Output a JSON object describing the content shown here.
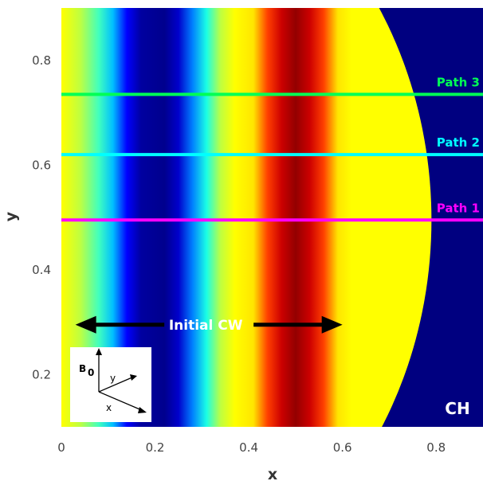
{
  "chart_data": {
    "type": "heatmap",
    "xlabel": "x",
    "ylabel": "y",
    "xlim": [
      0,
      0.9
    ],
    "ylim": [
      0.1,
      0.9
    ],
    "x_ticks": [
      "0",
      "0.2",
      "0.4",
      "0.6",
      "0.8"
    ],
    "y_ticks": [
      "0.2",
      "0.4",
      "0.6",
      "0.8"
    ],
    "x_tick_values": [
      0,
      0.2,
      0.4,
      0.6,
      0.8
    ],
    "y_tick_values": [
      0.2,
      0.4,
      0.6,
      0.8
    ],
    "colormap": [
      "#000080",
      "#0000ff",
      "#00ffff",
      "#ffff00",
      "#ff0000",
      "#800000"
    ],
    "field": {
      "description_values": "vertical stripes; color value v(x) in [0,1] over colormap",
      "x": [
        0.0,
        0.04,
        0.08,
        0.11,
        0.14,
        0.17,
        0.22,
        0.25,
        0.28,
        0.31,
        0.34,
        0.37,
        0.41,
        0.44,
        0.47,
        0.5,
        0.53,
        0.56,
        0.59,
        0.62,
        0.9
      ],
      "v": [
        0.6,
        0.55,
        0.45,
        0.35,
        0.2,
        0.05,
        0.02,
        0.12,
        0.3,
        0.42,
        0.55,
        0.6,
        0.62,
        0.75,
        0.88,
        0.97,
        0.88,
        0.75,
        0.62,
        0.6,
        0.6
      ]
    },
    "region_boundary": {
      "center": [
        0,
        0.495
      ],
      "radius": 0.79,
      "outside_color": "#000080"
    },
    "paths": [
      {
        "name": "Path 1",
        "y": 0.495,
        "color": "#ff00ff"
      },
      {
        "name": "Path 2",
        "y": 0.62,
        "color": "#00ffff"
      },
      {
        "name": "Path 3",
        "y": 0.735,
        "color": "#00ff55"
      }
    ],
    "annotations": {
      "cw_label": "Initial CW",
      "cw_arrow_x": [
        0.03,
        0.6
      ],
      "cw_arrow_y": 0.295,
      "region_label": "CH"
    },
    "inset": {
      "b_label": "B",
      "b_subscript": "0",
      "axis_y_label": "y",
      "axis_x_label": "x"
    }
  }
}
